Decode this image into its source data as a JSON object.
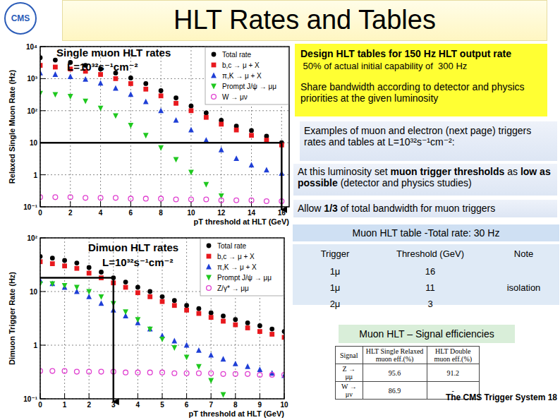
{
  "page": {
    "logo": "CMS",
    "title": "HLT Rates and Tables",
    "design": {
      "heading": "Design HLT tables for 150 Hz HLT output rate",
      "note": " 50% of actual initial capability of  300 Hz",
      "priority": "Share bandwidth according to detector and physics priorities at the given luminosity"
    },
    "examples": "Examples of muon and electron (next page) triggers rates and tables at L=10³²s⁻¹cm⁻²:",
    "thresholds": [
      "At this luminosity set ",
      "muon trigger thresholds",
      " as ",
      "low as possible",
      " (detector and physics studies)"
    ],
    "allow": [
      "Allow ",
      "1/3",
      " of total bandwidth for muon triggers"
    ],
    "muon_table": {
      "title": "Muon HLT table -Total rate: 30 Hz",
      "header": [
        "Trigger",
        "Threshold (GeV)",
        "Note"
      ],
      "rows": [
        [
          "1μ",
          16,
          null
        ],
        [
          "1μ",
          11,
          "isolation"
        ],
        [
          "2μ",
          3,
          null
        ]
      ]
    },
    "efficiency": {
      "title": "Muon HLT – Signal efficiencies",
      "header": [
        "Signal",
        "HLT Single Relaxed muon eff.(%)",
        "HLT Double muon eff.(%)"
      ],
      "rows": [
        [
          "Z → μμ",
          95.6,
          91.2
        ],
        [
          "W → μν",
          86.9,
          "-"
        ]
      ]
    },
    "footer": "The CMS Trigger System 18"
  },
  "chart_data": [
    {
      "type": "scatter",
      "title": "Single muon HLT rates",
      "subtitle": "L=10³²s⁻¹cm⁻²",
      "x_label": "pT threshold at HLT (GeV)",
      "y_label": "Relaxed Single Muon Rate (Hz)",
      "x": [
        0,
        1,
        2,
        3,
        4,
        5,
        6,
        7,
        8,
        9,
        10,
        11,
        12,
        13,
        14,
        15,
        16
      ],
      "series": [
        {
          "name": "Total rate",
          "color": "#000000",
          "marker": "circle",
          "values": [
            4500,
            3800,
            3200,
            2600,
            2000,
            1500,
            1050,
            700,
            420,
            250,
            140,
            85,
            50,
            33,
            24,
            16,
            10
          ]
        },
        {
          "name": "b,c → μ + X",
          "color": "#e8191e",
          "marker": "square",
          "values": [
            2600,
            2300,
            2000,
            1700,
            1350,
            1000,
            700,
            470,
            290,
            170,
            100,
            62,
            38,
            25,
            17,
            12,
            8.5
          ]
        },
        {
          "name": "π,K → μ + X",
          "color": "#1f3fd6",
          "marker": "triangle",
          "values": [
            1500,
            1350,
            1150,
            950,
            720,
            500,
            320,
            190,
            100,
            50,
            25,
            12,
            6,
            3.2,
            2,
            1.4,
            1.1
          ]
        },
        {
          "name": "Prompt J/ψ → μμ",
          "color": "#1fc81f",
          "marker": "triangle-down",
          "values": [
            350,
            320,
            280,
            200,
            120,
            70,
            35,
            17,
            7,
            3,
            1.2,
            0.5,
            0.22,
            null,
            null,
            null,
            null
          ]
        },
        {
          "name": "W → μν",
          "color": "#e040d0",
          "marker": "open-circle",
          "values": [
            0.2,
            0.2,
            0.2,
            0.19,
            0.19,
            0.19,
            0.18,
            0.18,
            0.18,
            0.17,
            0.17,
            0.17,
            0.16,
            0.16,
            0.16,
            0.15,
            0.15
          ]
        }
      ],
      "xlim": [
        0,
        16.5
      ],
      "xticks": [
        0,
        2,
        4,
        6,
        8,
        10,
        12,
        14,
        16
      ],
      "ylim": [
        0.1,
        10000
      ],
      "yticks": [
        {
          "value": 0.1,
          "label": "10⁻¹"
        },
        1,
        10,
        {
          "value": 100,
          "label": "10²"
        },
        {
          "value": 1000,
          "label": "10³"
        },
        {
          "value": 10000,
          "label": "10⁴"
        }
      ],
      "log": "y",
      "grid": true,
      "legend": "top-right",
      "threshold": {
        "x": 16,
        "y": 10
      }
    },
    {
      "type": "scatter",
      "title": "Dimuon HLT rates",
      "subtitle": "L=10³²s⁻¹cm⁻²",
      "x_label": "pT threshold at HLT (GeV)",
      "y_label": "Dimuon Trigger Rate (Hz)",
      "x": [
        0,
        0.5,
        1,
        1.5,
        2,
        2.5,
        3,
        3.5,
        4,
        4.5,
        5,
        5.5,
        6,
        6.5,
        7,
        7.5,
        8,
        8.5,
        9,
        9.5,
        10
      ],
      "series": [
        {
          "name": "Total rate",
          "color": "#000000",
          "marker": "circle",
          "values": [
            45,
            42,
            38,
            34,
            28,
            23,
            18,
            15,
            12,
            10,
            8,
            6.8,
            5.5,
            4.8,
            4,
            3.5,
            3,
            2.6,
            2.3,
            2,
            1.8
          ]
        },
        {
          "name": "b,c → μ + X",
          "color": "#e8191e",
          "marker": "square",
          "values": [
            36,
            33,
            30,
            27,
            22,
            18,
            14.5,
            12,
            9.5,
            8,
            6.5,
            5.5,
            4.5,
            3.9,
            3.3,
            2.8,
            2.4,
            2.1,
            1.8,
            1.6,
            1.4
          ]
        },
        {
          "name": "π,K → μ + X",
          "color": "#1f3fd6",
          "marker": "triangle",
          "values": [
            16,
            14,
            12,
            10,
            8,
            6,
            4.5,
            3.5,
            2.6,
            2,
            1.5,
            1.2,
            1,
            0.8,
            0.65,
            0.55,
            0.45,
            0.4,
            0.35,
            0.3,
            0.27
          ]
        },
        {
          "name": "Prompt J/ψ → μμ",
          "color": "#1fc81f",
          "marker": "triangle-down",
          "values": [
            14,
            14,
            13,
            12,
            10,
            8,
            6,
            4.2,
            3,
            2,
            1.3,
            0.9,
            0.6,
            0.4,
            0.22,
            0.12,
            null,
            null,
            null,
            null,
            null
          ]
        },
        {
          "name": "Z/γ* → μμ",
          "color": "#e040d0",
          "marker": "open-circle",
          "values": [
            0.33,
            0.33,
            0.33,
            0.32,
            0.32,
            0.32,
            0.32,
            0.31,
            0.31,
            0.31,
            0.31,
            0.3,
            0.3,
            0.3,
            0.3,
            0.29,
            0.29,
            0.29,
            0.28,
            0.28,
            0.28
          ]
        }
      ],
      "xlim": [
        0,
        10
      ],
      "xticks": [
        0,
        1,
        2,
        3,
        4,
        5,
        6,
        7,
        8,
        9,
        10
      ],
      "ylim": [
        0.1,
        100
      ],
      "yticks": [
        {
          "value": 0.1,
          "label": "10⁻¹"
        },
        1,
        10,
        {
          "value": 100,
          "label": "10²"
        }
      ],
      "log": "y",
      "grid": true,
      "legend": "top-right",
      "threshold": {
        "x": 3,
        "y": 18
      }
    }
  ]
}
